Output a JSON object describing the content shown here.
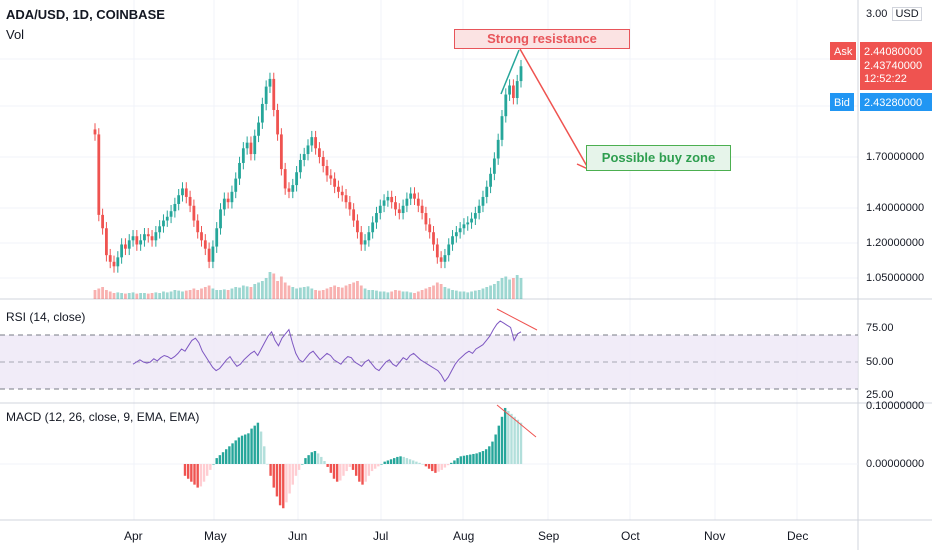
{
  "header": {
    "symbol": "ADA/USD, 1D, COINBASE",
    "volume_label": "Vol"
  },
  "axis": {
    "currency": "USD",
    "top_label": "3.00",
    "price_ticks": [
      "1.70000000",
      "1.40000000",
      "1.20000000",
      "1.05000000"
    ]
  },
  "quote": {
    "ask_label": "Ask",
    "ask_value": "2.44080000",
    "last_value": "2.43740000",
    "countdown": "12:52:22",
    "bid_label": "Bid",
    "bid_value": "2.43280000",
    "ask_color": "#ef5350",
    "bid_color": "#2196f3"
  },
  "annotations": {
    "resistance": "Strong resistance",
    "buy_zone": "Possible buy zone"
  },
  "rsi": {
    "label": "RSI (14, close)",
    "ticks": [
      "75.00",
      "50.00",
      "25.00"
    ]
  },
  "macd": {
    "label": "MACD (12, 26, close, 9, EMA, EMA)",
    "ticks": [
      "0.10000000",
      "0.00000000"
    ]
  },
  "months": [
    "Apr",
    "May",
    "Jun",
    "Jul",
    "Aug",
    "Sep",
    "Oct",
    "Nov",
    "Dec"
  ],
  "chart_data": {
    "type": "candlestick",
    "title": "ADA/USD, 1D, COINBASE",
    "y_scale": "log",
    "ylim": [
      1.0,
      3.0
    ],
    "price_close": [
      1.86,
      1.35,
      1.28,
      1.15,
      1.12,
      1.1,
      1.14,
      1.2,
      1.18,
      1.22,
      1.24,
      1.2,
      1.22,
      1.25,
      1.24,
      1.22,
      1.26,
      1.29,
      1.32,
      1.34,
      1.37,
      1.41,
      1.46,
      1.5,
      1.45,
      1.4,
      1.32,
      1.26,
      1.22,
      1.18,
      1.12,
      1.19,
      1.28,
      1.38,
      1.44,
      1.42,
      1.48,
      1.56,
      1.66,
      1.76,
      1.8,
      1.72,
      1.85,
      1.95,
      2.1,
      2.25,
      2.32,
      2.05,
      1.86,
      1.62,
      1.5,
      1.48,
      1.52,
      1.6,
      1.68,
      1.72,
      1.78,
      1.84,
      1.76,
      1.7,
      1.64,
      1.58,
      1.56,
      1.51,
      1.48,
      1.46,
      1.42,
      1.38,
      1.32,
      1.26,
      1.2,
      1.22,
      1.26,
      1.31,
      1.36,
      1.4,
      1.43,
      1.45,
      1.42,
      1.38,
      1.36,
      1.4,
      1.44,
      1.47,
      1.44,
      1.4,
      1.36,
      1.3,
      1.26,
      1.2,
      1.14,
      1.12,
      1.15,
      1.2,
      1.24,
      1.26,
      1.28,
      1.3,
      1.31,
      1.33,
      1.36,
      1.4,
      1.45,
      1.51,
      1.59,
      1.69,
      1.82,
      2.0,
      2.18,
      2.26,
      2.15,
      2.3,
      2.44
    ],
    "volume": [
      0.3,
      0.35,
      0.4,
      0.3,
      0.25,
      0.2,
      0.22,
      0.2,
      0.18,
      0.2,
      0.22,
      0.18,
      0.2,
      0.2,
      0.18,
      0.2,
      0.22,
      0.2,
      0.25,
      0.22,
      0.25,
      0.3,
      0.28,
      0.25,
      0.28,
      0.3,
      0.35,
      0.3,
      0.35,
      0.4,
      0.45,
      0.35,
      0.3,
      0.3,
      0.32,
      0.3,
      0.35,
      0.4,
      0.38,
      0.45,
      0.42,
      0.4,
      0.5,
      0.55,
      0.6,
      0.7,
      0.9,
      0.85,
      0.6,
      0.75,
      0.55,
      0.45,
      0.4,
      0.35,
      0.38,
      0.4,
      0.42,
      0.35,
      0.3,
      0.28,
      0.3,
      0.35,
      0.4,
      0.45,
      0.4,
      0.38,
      0.45,
      0.5,
      0.55,
      0.6,
      0.45,
      0.35,
      0.3,
      0.3,
      0.28,
      0.25,
      0.25,
      0.22,
      0.25,
      0.3,
      0.28,
      0.25,
      0.25,
      0.22,
      0.2,
      0.25,
      0.3,
      0.35,
      0.4,
      0.45,
      0.55,
      0.5,
      0.4,
      0.35,
      0.3,
      0.28,
      0.25,
      0.25,
      0.22,
      0.25,
      0.28,
      0.3,
      0.35,
      0.4,
      0.45,
      0.5,
      0.6,
      0.7,
      0.75,
      0.65,
      0.7,
      0.8,
      0.7
    ],
    "rsi": [
      48,
      50,
      52,
      50,
      49,
      50,
      53,
      51,
      54,
      56,
      55,
      53,
      55,
      58,
      62,
      60,
      65,
      70,
      72,
      68,
      60,
      55,
      50,
      45,
      42,
      44,
      48,
      52,
      55,
      50,
      46,
      48,
      52,
      55,
      58,
      60,
      56,
      62,
      68,
      74,
      78,
      70,
      65,
      72,
      76,
      80,
      68,
      58,
      52,
      50,
      54,
      58,
      60,
      56,
      52,
      55,
      58,
      56,
      52,
      50,
      48,
      52,
      55,
      54,
      50,
      48,
      46,
      50,
      52,
      48,
      44,
      42,
      46,
      50,
      52,
      48,
      46,
      50,
      54,
      52,
      56,
      58,
      55,
      52,
      50,
      48,
      46,
      44,
      42,
      38,
      32,
      36,
      42,
      48,
      52,
      55,
      58,
      60,
      58,
      62,
      64,
      66,
      70,
      74,
      80,
      85,
      88,
      86,
      84,
      82,
      70,
      76,
      78
    ],
    "macd": [
      -0.02,
      -0.025,
      -0.03,
      -0.035,
      -0.04,
      -0.038,
      -0.03,
      -0.02,
      -0.01,
      0.0,
      0.01,
      0.015,
      0.02,
      0.025,
      0.03,
      0.035,
      0.04,
      0.045,
      0.048,
      0.05,
      0.052,
      0.06,
      0.065,
      0.07,
      0.055,
      0.03,
      0.0,
      -0.02,
      -0.04,
      -0.055,
      -0.07,
      -0.075,
      -0.065,
      -0.05,
      -0.035,
      -0.02,
      -0.01,
      0.0,
      0.01,
      0.015,
      0.02,
      0.022,
      0.018,
      0.012,
      0.005,
      -0.005,
      -0.015,
      -0.025,
      -0.03,
      -0.028,
      -0.02,
      -0.012,
      -0.005,
      -0.01,
      -0.02,
      -0.03,
      -0.035,
      -0.03,
      -0.02,
      -0.012,
      -0.008,
      -0.004,
      0.0,
      0.004,
      0.006,
      0.008,
      0.01,
      0.012,
      0.013,
      0.012,
      0.01,
      0.008,
      0.006,
      0.004,
      0.002,
      0.0,
      -0.004,
      -0.008,
      -0.012,
      -0.015,
      -0.013,
      -0.01,
      -0.006,
      -0.002,
      0.002,
      0.006,
      0.01,
      0.013,
      0.014,
      0.015,
      0.016,
      0.017,
      0.018,
      0.02,
      0.022,
      0.025,
      0.03,
      0.038,
      0.05,
      0.065,
      0.08,
      0.095,
      0.09,
      0.085,
      0.08,
      0.075,
      0.07
    ],
    "x_ticks": [
      "Apr",
      "May",
      "Jun",
      "Jul",
      "Aug",
      "Sep",
      "Oct",
      "Nov",
      "Dec"
    ]
  }
}
